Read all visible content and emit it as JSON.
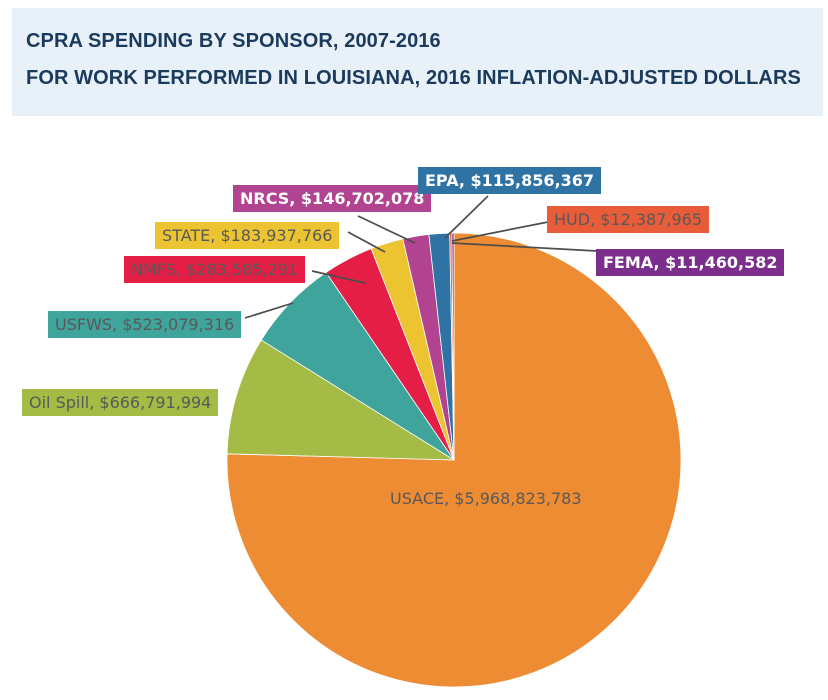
{
  "header": {
    "title_line1": "CPRA SPENDING BY SPONSOR, 2007-2016",
    "title_line2": "FOR WORK PERFORMED IN LOUISIANA, 2016 INFLATION-ADJUSTED DOLLARS"
  },
  "colors": {
    "header_bg": "#E9F1F8",
    "header_text": "#1A3A5E",
    "leader_line": "#4D4D4D",
    "label_text_dark": "#595959",
    "label_text_light": "#FFFFFF",
    "background": "#FFFFFF"
  },
  "chart_data": {
    "type": "pie",
    "title": "CPRA SPENDING BY SPONSOR, 2007-2016",
    "subtitle": "FOR WORK PERFORMED IN LOUISIANA, 2016 INFLATION-ADJUSTED DOLLARS",
    "currency": "USD",
    "start_angle_deg": 0,
    "direction": "clockwise",
    "legend": "none",
    "data_labels": "category-and-value-callouts",
    "slices": [
      {
        "id": "usace",
        "label": "USACE",
        "value": 5968823783,
        "display": "USACE, $5,968,823,783",
        "color": "#EE8C33",
        "text": "dark"
      },
      {
        "id": "oil_spill",
        "label": "Oil Spill",
        "value": 666791994,
        "display": "Oil Spill, $666,791,994",
        "color": "#A4BB45",
        "text": "dark"
      },
      {
        "id": "usfws",
        "label": "USFWS",
        "value": 523079316,
        "display": "USFWS, $523,079,316",
        "color": "#3FA49C",
        "text": "dark"
      },
      {
        "id": "nmfs",
        "label": "NMFS",
        "value": 283585291,
        "display": "NMFS, $283,585,291",
        "color": "#E41E45",
        "text": "dark"
      },
      {
        "id": "state",
        "label": "STATE",
        "value": 183937766,
        "display": "STATE, $183,937,766",
        "color": "#ECC431",
        "text": "dark"
      },
      {
        "id": "nrcs",
        "label": "NRCS",
        "value": 146702078,
        "display": "NRCS, $146,702,078",
        "color": "#B14390",
        "text": "light"
      },
      {
        "id": "epa",
        "label": "EPA",
        "value": 115856367,
        "display": "EPA, $115,856,367",
        "color": "#2E73A3",
        "text": "light"
      },
      {
        "id": "hud",
        "label": "HUD",
        "value": 12387965,
        "display": "HUD, $12,387,965",
        "color": "#E95C39",
        "text": "dark"
      },
      {
        "id": "fema",
        "label": "FEMA",
        "value": 11460582,
        "display": "FEMA, $11,460,582",
        "color": "#7C2E8C",
        "text": "light"
      }
    ]
  }
}
